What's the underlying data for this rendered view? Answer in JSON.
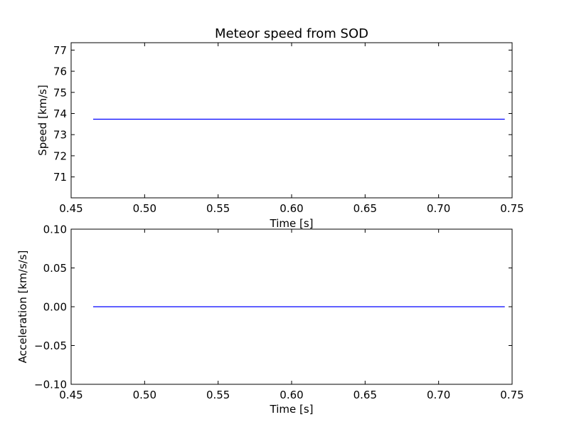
{
  "chart_data": [
    {
      "type": "line",
      "title": "Meteor speed from  SOD",
      "xlabel": "Time [s]",
      "ylabel": "Speed [km/s]",
      "xlim": [
        0.45,
        0.75
      ],
      "ylim": [
        70.01,
        77.35
      ],
      "xticks": [
        0.45,
        0.5,
        0.55,
        0.6,
        0.65,
        0.7,
        0.75
      ],
      "xtick_labels": [
        "0.45",
        "0.50",
        "0.55",
        "0.60",
        "0.65",
        "0.70",
        "0.75"
      ],
      "yticks": [
        71,
        72,
        73,
        74,
        75,
        76,
        77
      ],
      "ytick_labels": [
        "71",
        "72",
        "73",
        "74",
        "75",
        "76",
        "77"
      ],
      "grid": false,
      "series": [
        {
          "color": "#0000ff",
          "x": [
            0.465,
            0.745
          ],
          "y": [
            73.73,
            73.73
          ]
        }
      ]
    },
    {
      "type": "line",
      "title": "",
      "xlabel": "Time [s]",
      "ylabel": "Acceleration [km/s/s]",
      "xlim": [
        0.45,
        0.75
      ],
      "ylim": [
        -0.1,
        0.1
      ],
      "xticks": [
        0.45,
        0.5,
        0.55,
        0.6,
        0.65,
        0.7,
        0.75
      ],
      "xtick_labels": [
        "0.45",
        "0.50",
        "0.55",
        "0.60",
        "0.65",
        "0.70",
        "0.75"
      ],
      "yticks": [
        -0.1,
        -0.05,
        0.0,
        0.05,
        0.1
      ],
      "ytick_labels": [
        "−0.10",
        "−0.05",
        "0.00",
        "0.05",
        "0.10"
      ],
      "grid": false,
      "series": [
        {
          "color": "#0000ff",
          "x": [
            0.465,
            0.745
          ],
          "y": [
            0.0,
            0.0
          ]
        }
      ]
    }
  ]
}
